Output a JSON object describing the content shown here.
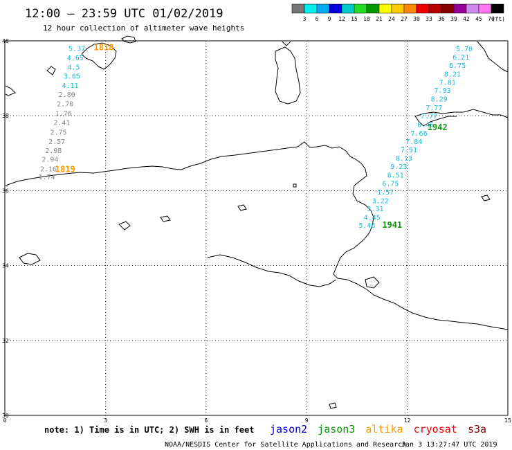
{
  "header": {
    "title": "12:00 – 23:59 UTC 01/02/2019",
    "subtitle": "12 hour collection of altimeter wave heights"
  },
  "legend": {
    "colors": [
      "#777777",
      "#00f0f0",
      "#00aaee",
      "#0000dd",
      "#00cccc",
      "#22dd22",
      "#009900",
      "#ffff00",
      "#ffcc00",
      "#ff8800",
      "#ee0000",
      "#bb0000",
      "#880000",
      "#990099",
      "#cc88ee",
      "#ff77ee",
      "#000000"
    ],
    "ticks": [
      "3",
      "6",
      "9",
      "12",
      "15",
      "18",
      "21",
      "24",
      "27",
      "30",
      "33",
      "36",
      "39",
      "42",
      "45",
      "70"
    ],
    "unit": "(ft)"
  },
  "axes": {
    "x_ticks": [
      "0",
      "3",
      "6",
      "9",
      "12",
      "15"
    ],
    "y_ticks": [
      "40",
      "38",
      "36",
      "34",
      "32",
      "30"
    ],
    "lon_range": [
      0,
      15
    ],
    "lat_range": [
      30,
      40
    ]
  },
  "tracks": [
    {
      "satellite": "altika",
      "color": "#11bbdd",
      "points": [
        {
          "v": "5.37",
          "lon": 2.15,
          "lat": 39.73
        },
        {
          "v": "4.65",
          "lon": 2.1,
          "lat": 39.48
        },
        {
          "v": "4.5",
          "lon": 2.05,
          "lat": 39.23
        },
        {
          "v": "3.65",
          "lon": 2.0,
          "lat": 38.99
        },
        {
          "v": "4.11",
          "lon": 1.95,
          "lat": 38.74
        }
      ]
    },
    {
      "satellite": "altika",
      "color": "#888888",
      "points": [
        {
          "v": "2.80",
          "lon": 1.85,
          "lat": 38.5
        },
        {
          "v": "2.70",
          "lon": 1.8,
          "lat": 38.25
        },
        {
          "v": "1.76",
          "lon": 1.75,
          "lat": 38.0
        },
        {
          "v": "2.41",
          "lon": 1.7,
          "lat": 37.75
        },
        {
          "v": "2.75",
          "lon": 1.6,
          "lat": 37.5
        },
        {
          "v": "2.57",
          "lon": 1.55,
          "lat": 37.25
        },
        {
          "v": "2.98",
          "lon": 1.45,
          "lat": 37.01
        },
        {
          "v": "2.94",
          "lon": 1.35,
          "lat": 36.77
        },
        {
          "v": "2.16",
          "lon": 1.3,
          "lat": 36.52
        },
        {
          "v": "1.74",
          "lon": 1.25,
          "lat": 36.3
        }
      ]
    },
    {
      "satellite": "jason3",
      "color": "#11bbdd",
      "points": [
        {
          "v": "5.70",
          "lon": 13.7,
          "lat": 39.72
        },
        {
          "v": "6.21",
          "lon": 13.6,
          "lat": 39.5
        },
        {
          "v": "6.75",
          "lon": 13.5,
          "lat": 39.28
        },
        {
          "v": "8.21",
          "lon": 13.35,
          "lat": 39.05
        },
        {
          "v": "7.81",
          "lon": 13.2,
          "lat": 38.83
        },
        {
          "v": "7.93",
          "lon": 13.05,
          "lat": 38.61
        },
        {
          "v": "8.29",
          "lon": 12.95,
          "lat": 38.38
        },
        {
          "v": "7.77",
          "lon": 12.8,
          "lat": 38.15
        },
        {
          "v": "7.77",
          "lon": 12.65,
          "lat": 37.93
        },
        {
          "v": "6.46",
          "lon": 12.55,
          "lat": 37.7
        },
        {
          "v": "7.66",
          "lon": 12.35,
          "lat": 37.47
        },
        {
          "v": "7.84",
          "lon": 12.2,
          "lat": 37.25
        },
        {
          "v": "7.91",
          "lon": 12.05,
          "lat": 37.02
        },
        {
          "v": "8.13",
          "lon": 11.9,
          "lat": 36.8
        },
        {
          "v": "9.23",
          "lon": 11.75,
          "lat": 36.58
        },
        {
          "v": "8.51",
          "lon": 11.65,
          "lat": 36.35
        },
        {
          "v": "6.75",
          "lon": 11.5,
          "lat": 36.13
        },
        {
          "v": "1.57",
          "lon": 11.35,
          "lat": 35.9
        },
        {
          "v": "3.22",
          "lon": 11.2,
          "lat": 35.67
        },
        {
          "v": "3.31",
          "lon": 11.05,
          "lat": 35.45
        },
        {
          "v": "4.45",
          "lon": 10.95,
          "lat": 35.22
        },
        {
          "v": "5.46",
          "lon": 10.8,
          "lat": 35.01
        }
      ]
    }
  ],
  "time_labels": [
    {
      "text": "1818",
      "color": "#ff9900",
      "lon": 2.95,
      "lat": 39.75
    },
    {
      "text": "1819",
      "color": "#ff9900",
      "lon": 1.8,
      "lat": 36.5
    },
    {
      "text": "1942",
      "color": "#119911",
      "lon": 12.9,
      "lat": 37.62
    },
    {
      "text": "1941",
      "color": "#119911",
      "lon": 11.55,
      "lat": 35.01
    }
  ],
  "footer": {
    "note": "note: 1) Time is in UTC; 2) SWH is in feet",
    "satellites": [
      {
        "name": "jason2",
        "color": "#0000cc"
      },
      {
        "name": "jason3",
        "color": "#009900"
      },
      {
        "name": "altika",
        "color": "#ff9900"
      },
      {
        "name": "cryosat",
        "color": "#ee0000"
      },
      {
        "name": "s3a",
        "color": "#880000"
      }
    ],
    "credit": "NOAA/NESDIS Center for Satellite Applications and Research",
    "timestamp": "Jan  3 13:27:47 UTC 2019"
  }
}
